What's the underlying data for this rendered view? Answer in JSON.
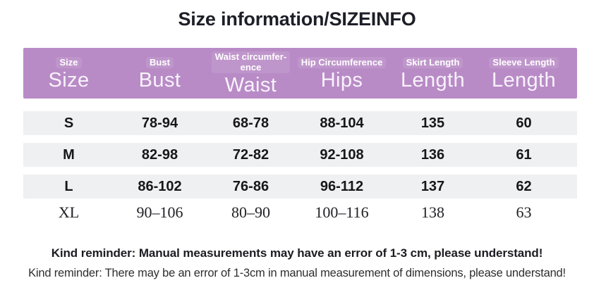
{
  "title": "Size information/SIZEINFO",
  "table": {
    "columns": [
      {
        "small": "Size",
        "large": "Size"
      },
      {
        "small": "Bust",
        "large": "Bust"
      },
      {
        "small": "Waist circumfer-\nence",
        "large": "Waist"
      },
      {
        "small": "Hip Circumference",
        "large": "Hips"
      },
      {
        "small": "Skirt Length",
        "large": "Length"
      },
      {
        "small": "Sleeve Length",
        "large": "Length"
      }
    ],
    "rows": [
      {
        "cells": [
          "S",
          "78-94",
          "68-78",
          "88-104",
          "135",
          "60"
        ]
      },
      {
        "cells": [
          "M",
          "82-98",
          "72-82",
          "92-108",
          "136",
          "61"
        ]
      },
      {
        "cells": [
          "L",
          "86-102",
          "76-86",
          "96-112",
          "137",
          "62"
        ]
      },
      {
        "cells": [
          "XL",
          "90–106",
          "80–90",
          "100–116",
          "138",
          "63"
        ]
      }
    ]
  },
  "footer": {
    "bold_note": "Kind reminder: Manual measurements may have an error of 1-3 cm, please understand!",
    "note": "Kind reminder: There may be an error of 1-3cm in manual measurement of dimensions, please understand!"
  },
  "colors": {
    "header_bg": "#b88bc6",
    "row_bg": "#eff0f2",
    "title_color": "#1e1e28"
  }
}
